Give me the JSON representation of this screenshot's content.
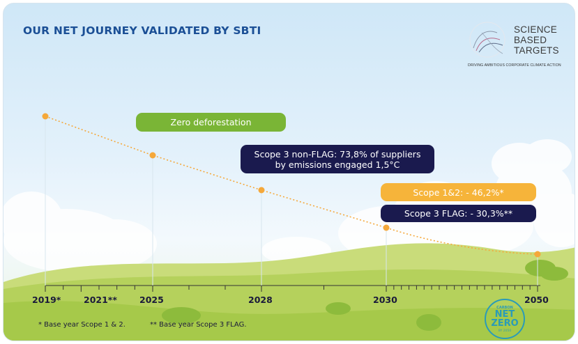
{
  "title": "OUR NET JOURNEY VALIDATED BY SBTI",
  "logo": {
    "line1": "SCIENCE",
    "line2": "BASED",
    "line3": "TARGETS",
    "tagline": "DRIVING AMBITIOUS CORPORATE CLIMATE ACTION"
  },
  "milestones": {
    "zero_deforestation": "Zero deforestation",
    "scope3_nonflag_line1": "Scope 3 non-FLAG: 73,8% of suppliers",
    "scope3_nonflag_line2": "by emissions engaged 1,5°C",
    "scope12": "Scope 1&2: - 46,2%*",
    "scope3_flag": "Scope 3 FLAG: - 30,3%**"
  },
  "timeline": {
    "years": [
      "2019*",
      "2021**",
      "2025",
      "2028",
      "2030",
      "2050"
    ]
  },
  "footnotes": {
    "note1": "*  Base year Scope 1 & 2.",
    "note2": "**  Base year Scope 3 FLAG."
  },
  "badge": {
    "line1": "CARBON",
    "line2": "NET",
    "line3": "ZERO",
    "line4": "BY 2050"
  },
  "colors": {
    "title": "#1b4f96",
    "green": "#7ab536",
    "navy": "#1a1a4e",
    "orange": "#f6b43a",
    "badge": "#2a9bb8"
  }
}
